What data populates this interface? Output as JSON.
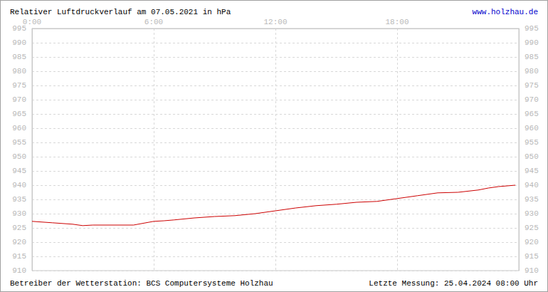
{
  "chart_data": {
    "type": "line",
    "title": "Relativer Luftdruckverlauf am 07.05.2021 in hPa",
    "link": "www.holzhau.de",
    "footer": [
      "Betreiber der Wetterstation: BCS Computersysteme Holzhau",
      "Letzte Messung: 25.04.2024 08:00 Uhr"
    ],
    "x": [
      0,
      1,
      2,
      2.5,
      3,
      4,
      5,
      6,
      6.5,
      7,
      8,
      9,
      10,
      11,
      12,
      13,
      14,
      15,
      16,
      17,
      18,
      19,
      20,
      21,
      22,
      22.5,
      23,
      23.83
    ],
    "values": [
      927.3,
      926.8,
      926.3,
      925.8,
      926,
      926,
      926,
      927.3,
      927.5,
      927.8,
      928.5,
      929,
      929.3,
      930,
      931,
      932,
      932.8,
      933.3,
      934,
      934.3,
      935.3,
      936.3,
      937.3,
      937.5,
      938.3,
      939,
      939.5,
      940
    ],
    "color": "#cc0000",
    "xlim": [
      0,
      24
    ],
    "xticks": [
      {
        "value": 0,
        "label": "0:00"
      },
      {
        "value": 6,
        "label": "6:00"
      },
      {
        "value": 12,
        "label": "12:00"
      },
      {
        "value": 18,
        "label": "18:00"
      }
    ],
    "ylim": [
      910,
      995
    ],
    "yticks": [
      910,
      915,
      920,
      925,
      930,
      935,
      940,
      945,
      950,
      955,
      960,
      965,
      970,
      975,
      980,
      985,
      990,
      995
    ],
    "grid": true
  }
}
